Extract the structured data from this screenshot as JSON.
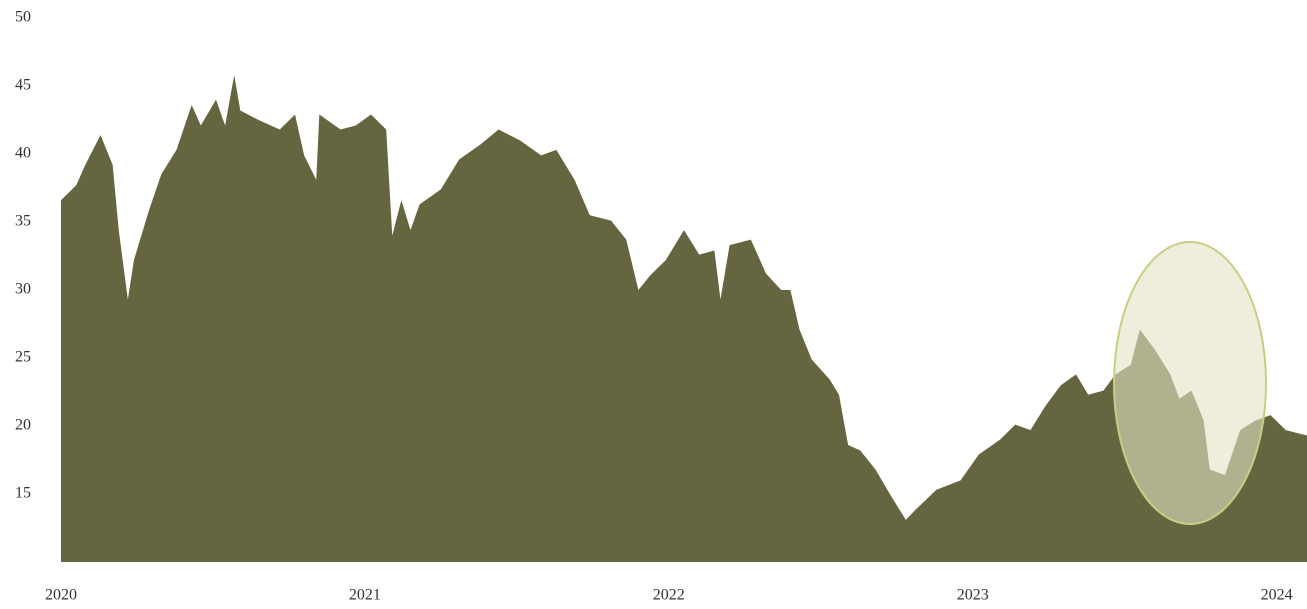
{
  "chart_data": {
    "type": "area",
    "color": "#65663f",
    "x": [
      2020.0,
      2020.05,
      2020.08,
      2020.13,
      2020.17,
      2020.19,
      2020.22,
      2020.24,
      2020.29,
      2020.33,
      2020.38,
      2020.43,
      2020.46,
      2020.51,
      2020.54,
      2020.57,
      2020.59,
      2020.65,
      2020.72,
      2020.77,
      2020.8,
      2020.84,
      2020.85,
      2020.92,
      2020.97,
      2021.02,
      2021.07,
      2021.09,
      2021.12,
      2021.15,
      2021.18,
      2021.25,
      2021.31,
      2021.38,
      2021.44,
      2021.51,
      2021.58,
      2021.63,
      2021.69,
      2021.74,
      2021.81,
      2021.86,
      2021.9,
      2021.94,
      2021.99,
      2022.05,
      2022.1,
      2022.15,
      2022.17,
      2022.2,
      2022.27,
      2022.32,
      2022.37,
      2022.4,
      2022.43,
      2022.47,
      2022.53,
      2022.56,
      2022.59,
      2022.63,
      2022.68,
      2022.73,
      2022.78,
      2022.81,
      2022.88,
      2022.96,
      2023.02,
      2023.09,
      2023.14,
      2023.19,
      2023.24,
      2023.29,
      2023.34,
      2023.38,
      2023.43,
      2023.47,
      2023.52,
      2023.55,
      2023.6,
      2023.65,
      2023.68,
      2023.72,
      2023.76,
      2023.78,
      2023.83,
      2023.88,
      2023.93,
      2023.98,
      2024.03,
      2024.1
    ],
    "values": [
      36.6,
      37.7,
      39.2,
      41.4,
      39.2,
      34.4,
      29.3,
      32.2,
      35.9,
      38.5,
      40.3,
      43.6,
      42.1,
      44.0,
      42.1,
      45.8,
      43.2,
      42.5,
      41.8,
      42.9,
      39.9,
      38.1,
      42.9,
      41.8,
      42.1,
      42.9,
      41.8,
      34.0,
      36.6,
      34.4,
      36.3,
      37.4,
      39.6,
      40.7,
      41.8,
      41.0,
      39.9,
      40.3,
      38.1,
      35.5,
      35.1,
      33.7,
      30.0,
      31.1,
      32.2,
      34.4,
      32.6,
      32.9,
      29.3,
      33.3,
      33.7,
      31.2,
      30.0,
      30.0,
      27.1,
      24.9,
      23.4,
      22.3,
      18.6,
      18.2,
      16.8,
      14.9,
      13.1,
      13.8,
      15.3,
      16.0,
      17.9,
      19.0,
      20.1,
      19.7,
      21.5,
      23.0,
      23.8,
      22.3,
      22.6,
      23.8,
      24.5,
      27.1,
      25.6,
      23.8,
      22.0,
      22.6,
      20.4,
      16.8,
      16.4,
      19.7,
      20.4,
      20.8,
      19.7,
      19.3
    ],
    "xlim": [
      2020,
      2024.1
    ],
    "xticks": [
      2020,
      2021,
      2022,
      2023,
      2024
    ],
    "ylim": [
      10,
      50
    ],
    "yticks": [
      15,
      20,
      25,
      30,
      35,
      40,
      45,
      50
    ]
  }
}
